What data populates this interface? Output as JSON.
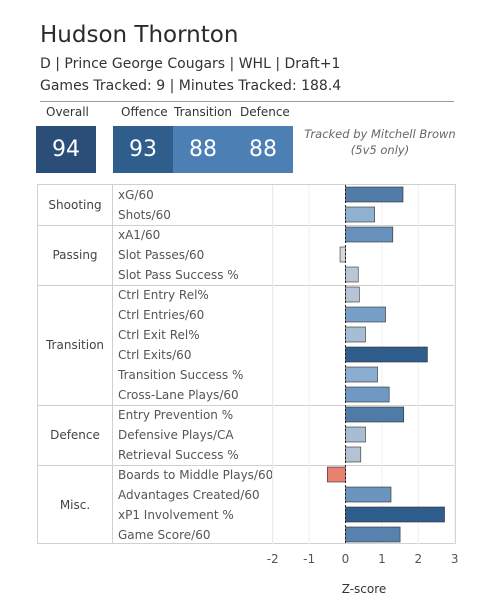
{
  "player": {
    "name": "Hudson Thornton",
    "info_line1": "D | Prince George Cougars | WHL | Draft+1",
    "info_line2": "Games Tracked: 9 | Minutes Tracked: 188.4"
  },
  "ratings": {
    "headers": {
      "overall": "Overall",
      "offence": "Offence",
      "transition": "Transition",
      "defence": "Defence"
    },
    "values": {
      "overall": "94",
      "offence": "93",
      "transition": "88",
      "defence": "88"
    },
    "colors": {
      "overall": "#2a4e78",
      "offence": "#2f5d8c",
      "transition": "#4c7fb4",
      "defence": "#4c7fb4"
    }
  },
  "tracked_by": {
    "line1": "Tracked by Mitchell Brown",
    "line2": "(5v5 only)"
  },
  "groups": [
    {
      "name": "Shooting",
      "metrics": [
        "xG/60",
        "Shots/60"
      ]
    },
    {
      "name": "Passing",
      "metrics": [
        "xA1/60",
        "Slot Passes/60",
        "Slot Pass Success %"
      ]
    },
    {
      "name": "Transition",
      "metrics": [
        "Ctrl Entry Rel%",
        "Ctrl Entries/60",
        "Ctrl Exit Rel%",
        "Ctrl Exits/60",
        "Transition Success %",
        "Cross-Lane Plays/60"
      ]
    },
    {
      "name": "Defence",
      "metrics": [
        "Entry Prevention %",
        "Defensive Plays/CA",
        "Retrieval Success %"
      ]
    },
    {
      "name": "Misc.",
      "metrics": [
        "Boards to Middle Plays/60",
        "Advantages Created/60",
        "xP1 Involvement %",
        "Game Score/60"
      ]
    }
  ],
  "chart_data": {
    "type": "bar",
    "orientation": "horizontal",
    "categories": [
      "xG/60",
      "Shots/60",
      "xA1/60",
      "Slot Passes/60",
      "Slot Pass Success %",
      "Ctrl Entry Rel%",
      "Ctrl Entries/60",
      "Ctrl Exit Rel%",
      "Ctrl Exits/60",
      "Transition Success %",
      "Cross-Lane Plays/60",
      "Entry Prevention %",
      "Defensive Plays/CA",
      "Retrieval Success %",
      "Boards to Middle Plays/60",
      "Advantages Created/60",
      "xP1 Involvement %",
      "Game Score/60"
    ],
    "values": [
      1.58,
      0.8,
      1.3,
      -0.15,
      0.35,
      0.38,
      1.1,
      0.55,
      2.25,
      0.88,
      1.2,
      1.6,
      0.55,
      0.42,
      -0.5,
      1.25,
      2.72,
      1.5
    ],
    "xlabel": "Z-score",
    "xlim": [
      -2,
      3
    ],
    "xticks": [
      "-2",
      "-1",
      "0",
      "1",
      "2",
      "3"
    ],
    "colors": {
      "low": "#d8d8d8",
      "mid": "#7fa7cf",
      "high": "#2f5d8c",
      "negative": "#e8826e"
    }
  }
}
